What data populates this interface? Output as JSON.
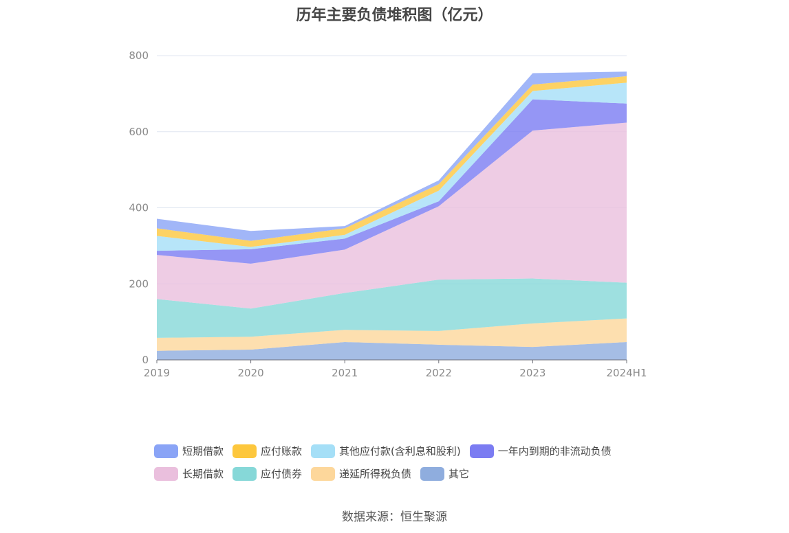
{
  "title": "历年主要负债堆积图（亿元）",
  "source": "数据来源：恒生聚源",
  "chart_data": {
    "type": "area",
    "stacked": true,
    "title": "历年主要负债堆积图（亿元）",
    "x": [
      "2019",
      "2020",
      "2021",
      "2022",
      "2023",
      "2024H1"
    ],
    "ylim": [
      0,
      800
    ],
    "yticks": [
      0,
      200,
      400,
      600,
      800
    ],
    "grid": true,
    "legend_position": "bottom",
    "series": [
      {
        "name": "其它",
        "color": "#8fadde",
        "values": [
          24,
          27,
          47,
          40,
          34,
          47
        ]
      },
      {
        "name": "递延所得税负债",
        "color": "#fdd79b",
        "values": [
          34,
          34,
          32,
          36,
          62,
          62
        ]
      },
      {
        "name": "应付债券",
        "color": "#86d8d8",
        "values": [
          102,
          74,
          97,
          135,
          118,
          94
        ]
      },
      {
        "name": "长期借款",
        "color": "#eabfdd",
        "values": [
          116,
          118,
          114,
          193,
          389,
          421
        ]
      },
      {
        "name": "一年内到期的非流动负债",
        "color": "#7b7cf2",
        "values": [
          11,
          38,
          29,
          13,
          82,
          50
        ]
      },
      {
        "name": "其他应付款(含利息和股利)",
        "color": "#a5dff7",
        "values": [
          39,
          6,
          10,
          28,
          22,
          55
        ]
      },
      {
        "name": "应付账款",
        "color": "#fdc73d",
        "values": [
          20,
          16,
          17,
          17,
          17,
          17
        ]
      },
      {
        "name": "短期借款",
        "color": "#8aa4f6",
        "values": [
          25,
          26,
          6,
          10,
          30,
          12
        ]
      }
    ]
  },
  "legend": {
    "row1": [
      {
        "label": "短期借款",
        "color": "#8aa4f6"
      },
      {
        "label": "应付账款",
        "color": "#fdc73d"
      },
      {
        "label": "其他应付款(含利息和股利)",
        "color": "#a5dff7"
      },
      {
        "label": "一年内到期的非流动负债",
        "color": "#7b7cf2"
      }
    ],
    "row2": [
      {
        "label": "长期借款",
        "color": "#eabfdd"
      },
      {
        "label": "应付债券",
        "color": "#86d8d8"
      },
      {
        "label": "递延所得税负债",
        "color": "#fdd79b"
      },
      {
        "label": "其它",
        "color": "#8fadde"
      }
    ]
  }
}
